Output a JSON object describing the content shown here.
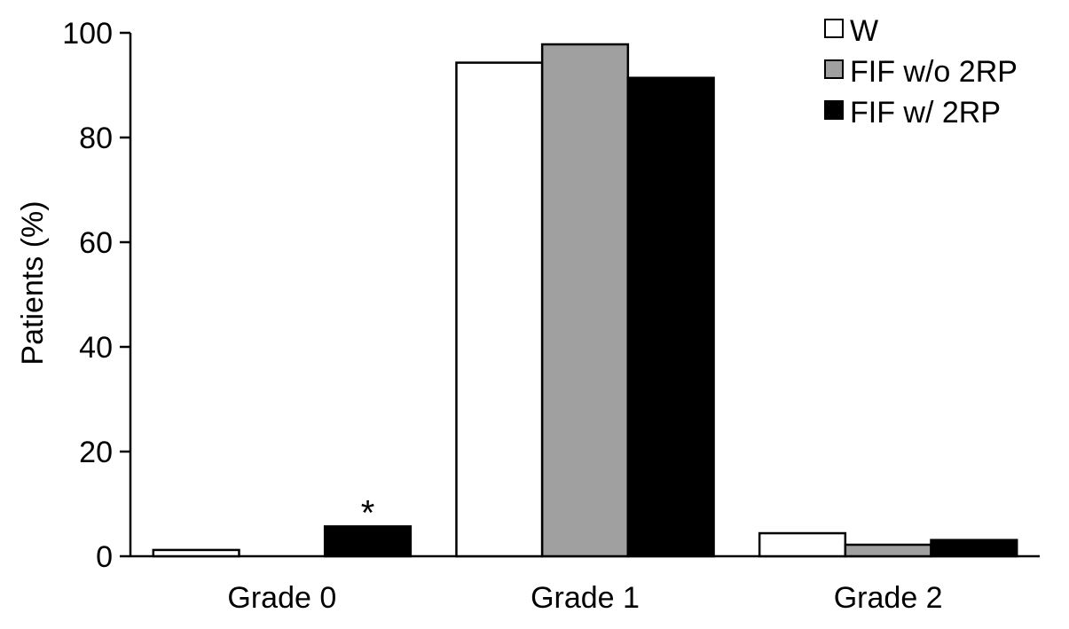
{
  "chart_data": {
    "type": "bar",
    "title": "",
    "xlabel": "",
    "ylabel": "Patients (%)",
    "ylim": [
      0,
      100
    ],
    "yticks": [
      "0",
      "20",
      "40",
      "60",
      "80",
      "100"
    ],
    "categories": [
      "Grade 0",
      "Grade 1",
      "Grade 2"
    ],
    "series": [
      {
        "name": "W",
        "color": "#ffffff",
        "values": [
          1.2,
          94.3,
          4.4
        ]
      },
      {
        "name": "FIF w/o 2RP",
        "color": "#a0a0a0",
        "values": [
          0.0,
          97.8,
          2.2
        ]
      },
      {
        "name": "FIF w/  2RP",
        "color": "#000000",
        "values": [
          5.7,
          91.4,
          3.1
        ]
      }
    ],
    "annotations": [
      {
        "text": "*",
        "category": "Grade 0",
        "series": "FIF w/  2RP"
      }
    ],
    "legend_position": "top-right",
    "grid": false
  }
}
